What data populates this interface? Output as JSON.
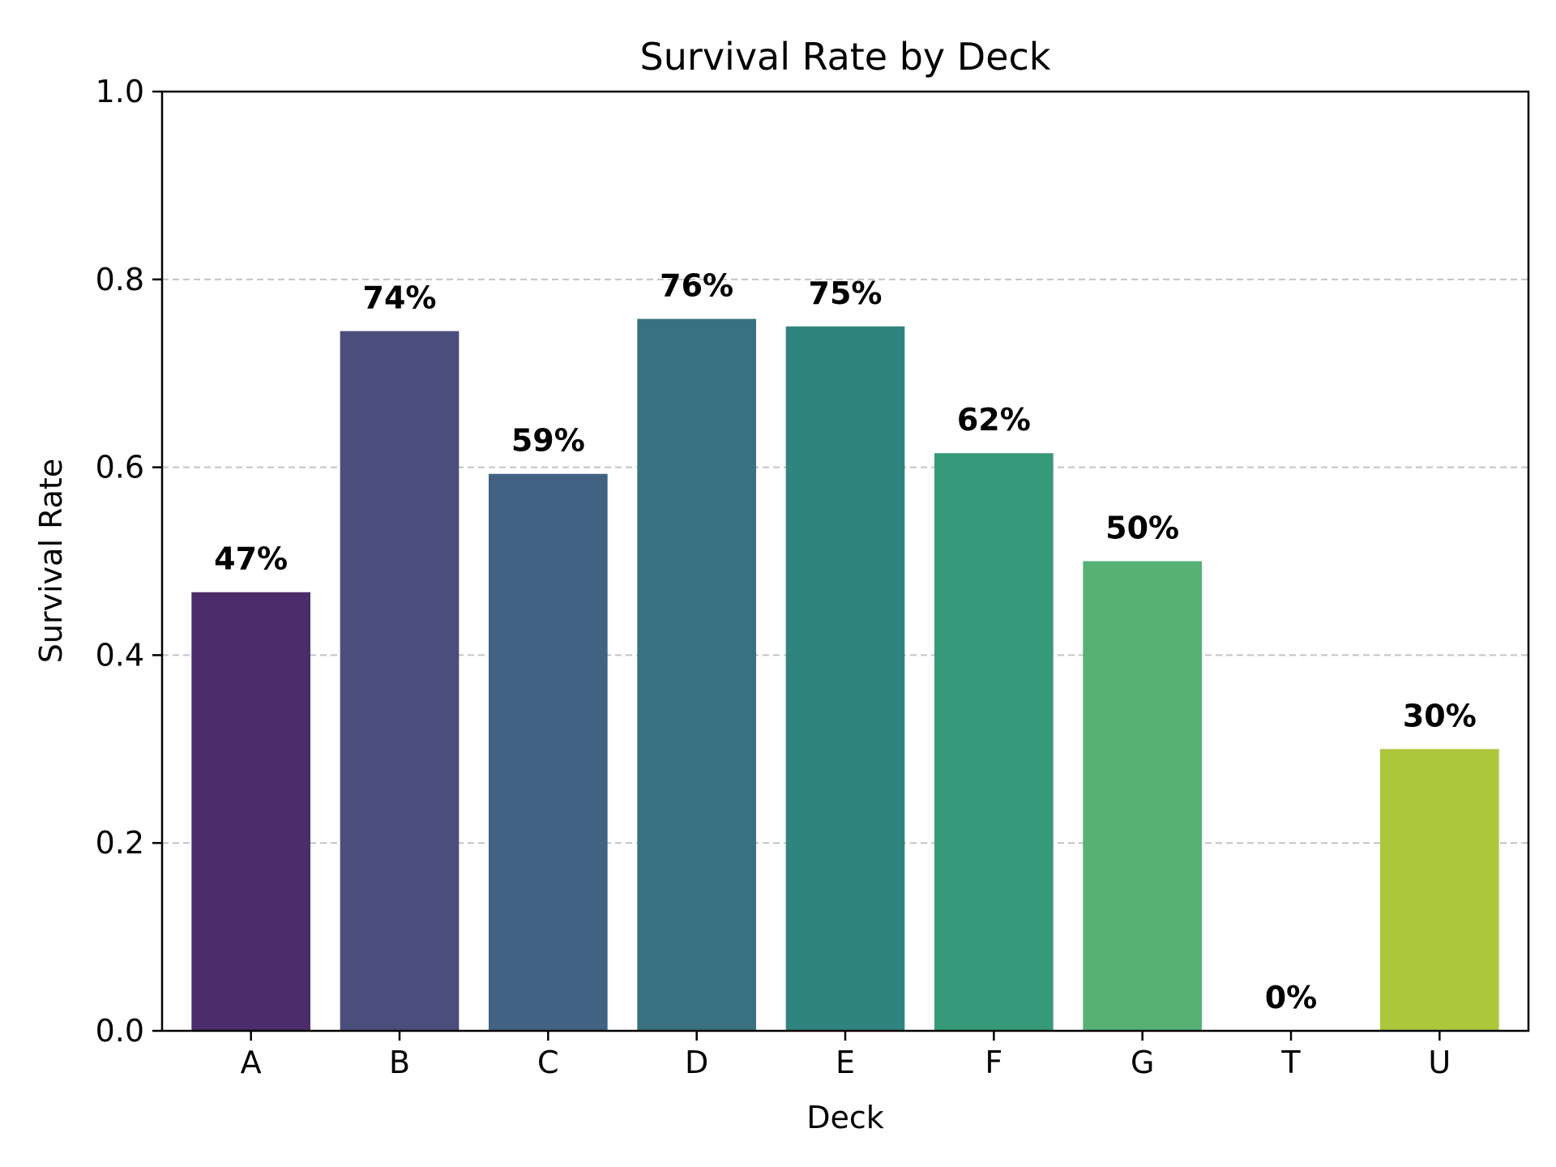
{
  "chart_data": {
    "type": "bar",
    "title": "Survival Rate by Deck",
    "xlabel": "Deck",
    "ylabel": "Survival Rate",
    "categories": [
      "A",
      "B",
      "C",
      "D",
      "E",
      "F",
      "G",
      "T",
      "U"
    ],
    "values": [
      0.467,
      0.745,
      0.593,
      0.758,
      0.75,
      0.615,
      0.5,
      0.0,
      0.3
    ],
    "data_labels": [
      "47%",
      "74%",
      "59%",
      "76%",
      "75%",
      "62%",
      "50%",
      "0%",
      "30%"
    ],
    "ylim": [
      0,
      1.0
    ],
    "yticks": [
      0.0,
      0.2,
      0.4,
      0.6,
      0.8,
      1.0
    ],
    "ytick_labels": [
      "0.0",
      "0.2",
      "0.4",
      "0.6",
      "0.8",
      "1.0"
    ],
    "grid": "y-dashed",
    "colors": [
      "#4b2d6b",
      "#4b4e7c",
      "#426283",
      "#387281",
      "#2f857e",
      "#369a7a",
      "#55b174",
      "#2fb47c",
      "#adc73d"
    ]
  }
}
